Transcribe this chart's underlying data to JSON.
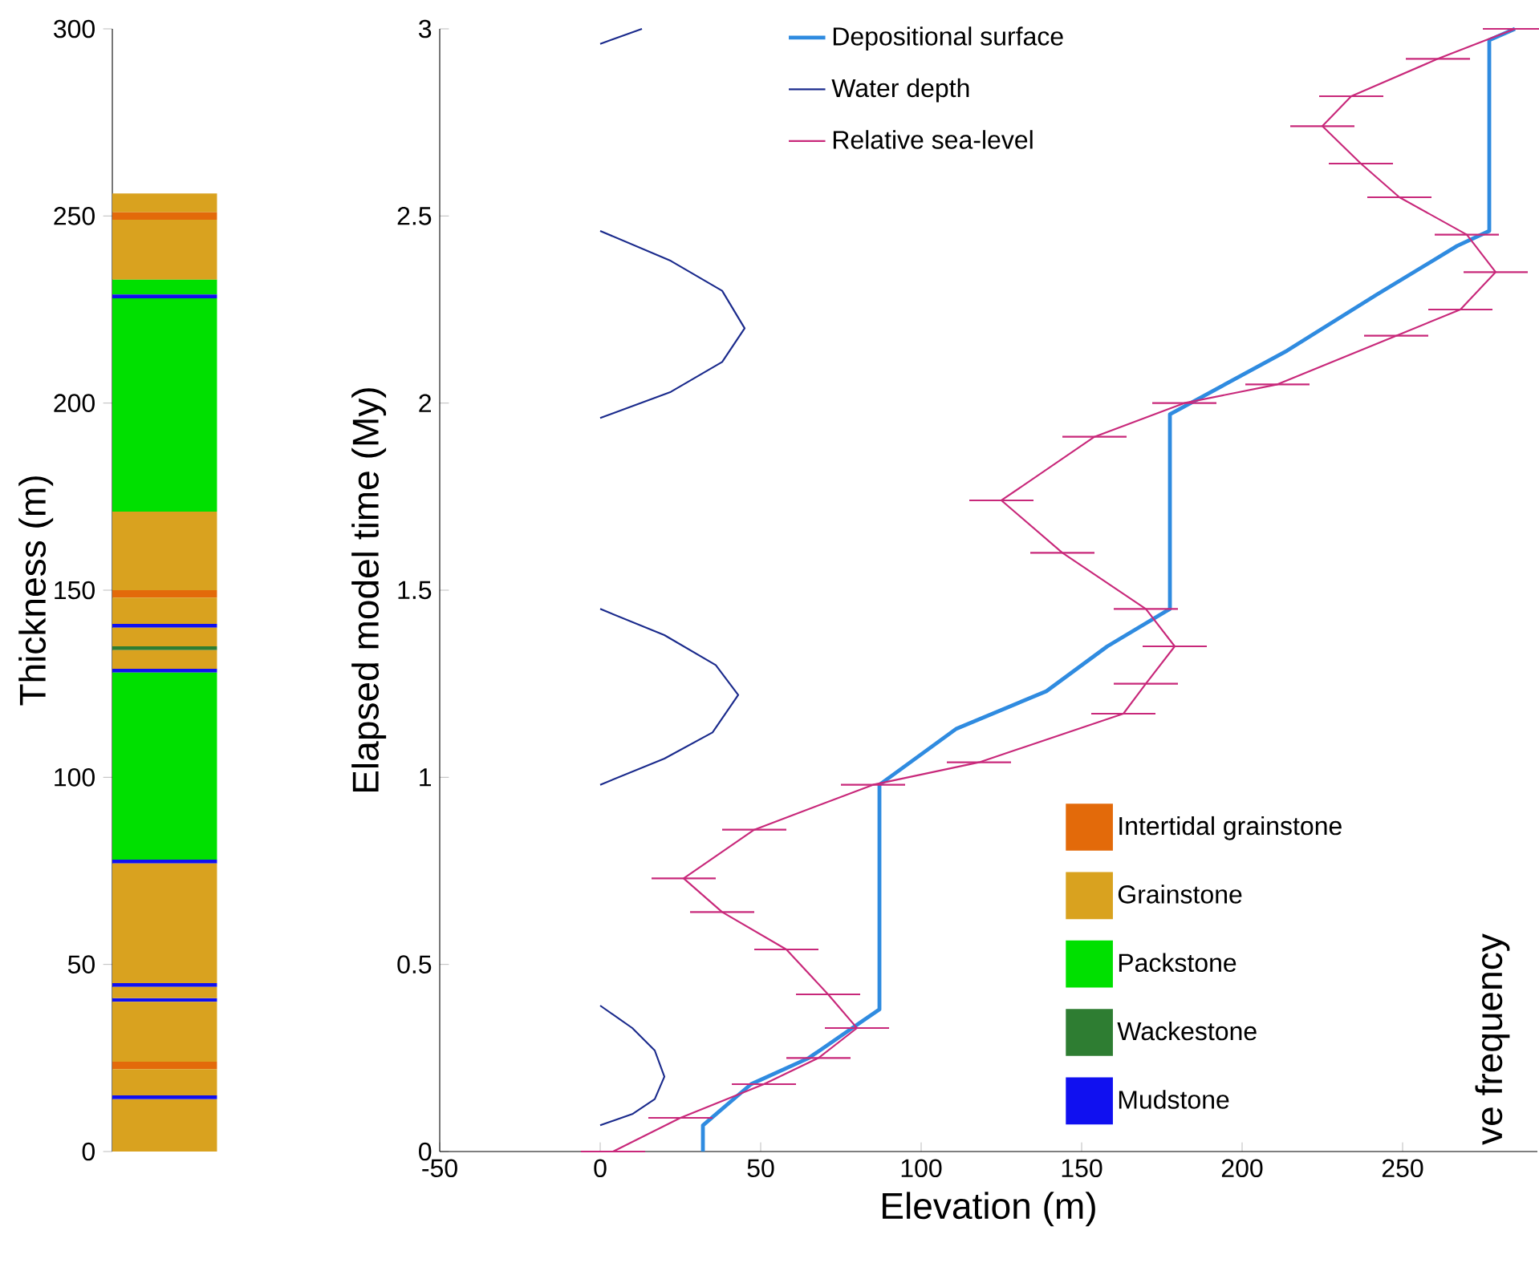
{
  "chart_data": [
    {
      "type": "bar",
      "stacked": true,
      "categories": [
        null
      ],
      "ylim": [
        0,
        300
      ],
      "yticks": [
        0,
        50,
        100,
        150,
        200,
        250,
        300
      ],
      "ylabel": "Thickness (m)",
      "legend": "right",
      "tick_labels": "y",
      "series": [
        {
          "color": "#d9a21f",
          "values": [
            14
          ]
        },
        {
          "color": "#1010f0",
          "values": [
            1
          ]
        },
        {
          "color": "#d9a21f",
          "values": [
            7
          ]
        },
        {
          "name": "Intertidal grainstone",
          "color": "#e36a0a",
          "values": [
            2
          ]
        },
        {
          "color": "#d9a21f",
          "values": [
            16
          ]
        },
        {
          "color": "#1010f0",
          "values": [
            1
          ]
        },
        {
          "color": "#d9a21f",
          "values": [
            3
          ]
        },
        {
          "color": "#1010f0",
          "values": [
            1
          ]
        },
        {
          "name": "Grainstone",
          "color": "#d9a21f",
          "values": [
            32
          ]
        },
        {
          "color": "#1010f0",
          "values": [
            1
          ]
        },
        {
          "name": "Packstone",
          "color": "#00e000",
          "values": [
            50
          ]
        },
        {
          "color": "#1010f0",
          "values": [
            1
          ]
        },
        {
          "color": "#d9a21f",
          "values": [
            5
          ]
        },
        {
          "name": "Wackestone",
          "color": "#2e7d32",
          "values": [
            1
          ]
        },
        {
          "color": "#d9a21f",
          "values": [
            5
          ]
        },
        {
          "name": "Mudstone",
          "color": "#1010f0",
          "values": [
            1
          ]
        },
        {
          "color": "#d9a21f",
          "values": [
            7
          ]
        },
        {
          "color": "#e36a0a",
          "values": [
            2
          ]
        },
        {
          "color": "#d9a21f",
          "values": [
            21
          ]
        },
        {
          "color": "#00e000",
          "values": [
            57
          ]
        },
        {
          "color": "#1010f0",
          "values": [
            1
          ]
        },
        {
          "color": "#00e000",
          "values": [
            4
          ]
        },
        {
          "color": "#d9a21f",
          "values": [
            16
          ]
        },
        {
          "color": "#e36a0a",
          "values": [
            2
          ]
        },
        {
          "color": "#d9a21f",
          "values": [
            5
          ]
        }
      ]
    },
    {
      "type": "line",
      "xlim": [
        -50,
        292
      ],
      "xticks": [
        -50,
        0,
        50,
        100,
        150,
        200,
        250
      ],
      "ylim": [
        0,
        3
      ],
      "yticks": [
        0,
        0.5,
        1,
        1.5,
        2,
        2.5,
        3
      ],
      "xlabel": "Elevation (m)",
      "ylabel": "Elapsed model time (My)",
      "legend": "top",
      "annotations": [
        "ve frequency"
      ],
      "series": [
        {
          "name": "Depositional surface",
          "color": "#2f8be0",
          "x": [
            32,
            32,
            47,
            65,
            87,
            87,
            111,
            139,
            158,
            177.5,
            177.5,
            214,
            242,
            267,
            277,
            277,
            285
          ],
          "values": [
            0,
            0.07,
            0.18,
            0.25,
            0.38,
            0.98,
            1.13,
            1.23,
            1.35,
            1.45,
            1.97,
            2.14,
            2.29,
            2.42,
            2.46,
            2.97,
            3
          ]
        },
        {
          "name": "Water depth",
          "color": "#1a2a8c",
          "x": [
            0,
            10,
            17,
            20,
            17,
            10,
            0,
            null,
            0,
            20,
            35,
            43,
            36,
            20,
            0,
            null,
            0,
            22,
            38,
            45,
            38,
            22,
            0,
            null,
            0,
            13
          ],
          "values": [
            0.07,
            0.1,
            0.14,
            0.2,
            0.27,
            0.33,
            0.39,
            null,
            0.98,
            1.05,
            1.12,
            1.22,
            1.3,
            1.38,
            1.45,
            null,
            1.96,
            2.03,
            2.11,
            2.2,
            2.3,
            2.38,
            2.46,
            null,
            2.96,
            3
          ]
        },
        {
          "name": "Relative sea-level",
          "color": "#c8287a",
          "x": [
            4,
            25,
            51,
            68,
            80,
            71,
            58,
            38,
            26,
            48,
            85,
            118,
            163,
            170,
            179,
            170,
            144,
            125,
            154,
            182,
            211,
            248,
            268,
            279,
            270,
            249,
            237,
            225,
            234,
            261,
            285
          ],
          "values": [
            0,
            0.09,
            0.18,
            0.25,
            0.33,
            0.42,
            0.54,
            0.64,
            0.73,
            0.86,
            0.98,
            1.04,
            1.17,
            1.25,
            1.35,
            1.45,
            1.6,
            1.74,
            1.91,
            2,
            2.05,
            2.18,
            2.25,
            2.35,
            2.45,
            2.55,
            2.64,
            2.74,
            2.82,
            2.92,
            3
          ],
          "xerrors": [
            10,
            10,
            10,
            10,
            10,
            10,
            10,
            10,
            10,
            10,
            10,
            10,
            10,
            10,
            10,
            10,
            10,
            10,
            10,
            10,
            10,
            10,
            10,
            10,
            10,
            10,
            10,
            10,
            10,
            10,
            10
          ]
        }
      ]
    }
  ]
}
